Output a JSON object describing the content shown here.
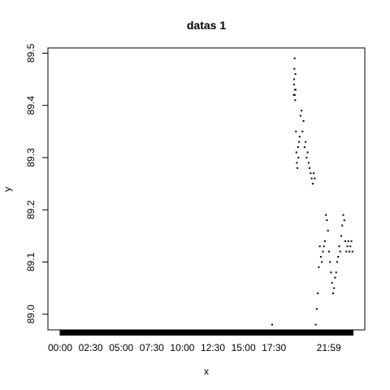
{
  "chart_data": {
    "type": "scatter",
    "title": "datas 1",
    "xlabel": "x",
    "ylabel": "y",
    "x_ticks": [
      "00:00",
      "02:30",
      "05:00",
      "07:30",
      "10:00",
      "12:30",
      "15:00",
      "17:30",
      "21:59"
    ],
    "y_ticks": [
      "89.0",
      "89.1",
      "89.2",
      "89.3",
      "89.4",
      "89.5"
    ],
    "x_range": [
      "00:00",
      "24:00"
    ],
    "y_range": [
      88.97,
      89.51
    ],
    "grid": false,
    "legend": "none",
    "rug": true,
    "series": [
      {
        "x": [
          "17:21",
          "19:07",
          "19:08",
          "19:09",
          "19:10",
          "19:11",
          "19:12",
          "19:13",
          "19:14",
          "19:15",
          "19:16",
          "19:18",
          "19:20",
          "19:22",
          "19:25",
          "19:28",
          "19:30",
          "19:33",
          "19:36",
          "19:40",
          "19:45",
          "19:50",
          "19:55",
          "20:00",
          "20:05",
          "20:10",
          "20:15",
          "20:20",
          "20:25",
          "20:30",
          "20:35",
          "20:40",
          "20:45",
          "20:50",
          "20:55",
          "21:00",
          "21:05",
          "21:10",
          "21:15",
          "21:20",
          "21:25",
          "21:30",
          "21:35",
          "21:40",
          "21:45",
          "21:50",
          "21:55",
          "22:00",
          "22:05",
          "22:10",
          "22:15",
          "22:20",
          "22:25",
          "22:30",
          "22:35",
          "22:40",
          "22:45",
          "22:50",
          "22:55",
          "23:00",
          "23:05",
          "23:10",
          "23:15",
          "23:20",
          "23:25",
          "23:30",
          "23:35",
          "23:40",
          "23:45",
          "23:50",
          "23:55"
        ],
        "y": [
          88.98,
          89.42,
          89.44,
          89.45,
          89.47,
          89.49,
          89.42,
          89.43,
          89.41,
          89.46,
          89.43,
          89.35,
          89.31,
          89.29,
          89.28,
          89.32,
          89.3,
          89.33,
          89.34,
          89.38,
          89.39,
          89.35,
          89.37,
          89.32,
          89.33,
          89.3,
          89.31,
          89.29,
          89.28,
          89.27,
          89.26,
          89.25,
          89.27,
          89.26,
          88.98,
          89.01,
          89.04,
          89.09,
          89.13,
          89.11,
          89.1,
          89.12,
          89.13,
          89.14,
          89.19,
          89.18,
          89.16,
          89.12,
          89.1,
          89.08,
          89.06,
          89.04,
          89.05,
          89.07,
          89.08,
          89.1,
          89.11,
          89.13,
          89.12,
          89.15,
          89.17,
          89.19,
          89.18,
          89.14,
          89.12,
          89.13,
          89.14,
          89.12,
          89.13,
          89.14,
          89.12
        ]
      }
    ]
  }
}
